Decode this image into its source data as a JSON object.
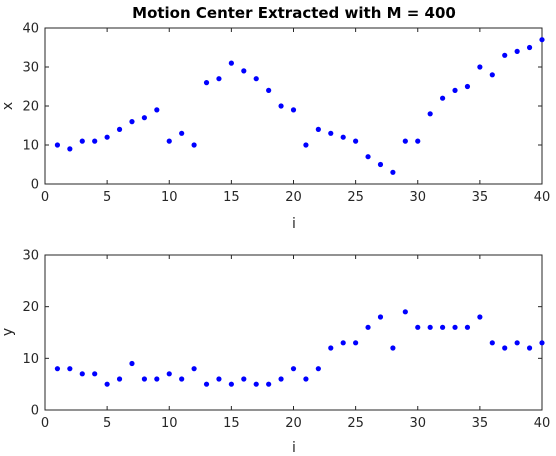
{
  "chart_data": [
    {
      "type": "scatter",
      "title": "Motion Center Extracted with M = 400",
      "xlabel": "i",
      "ylabel": "x",
      "xlim": [
        0,
        40
      ],
      "ylim": [
        0,
        40
      ],
      "xticks": [
        0,
        5,
        10,
        15,
        20,
        25,
        30,
        35,
        40
      ],
      "yticks": [
        0,
        10,
        20,
        30,
        40
      ],
      "grid": false,
      "color": "#0000ff",
      "x": [
        1,
        2,
        3,
        4,
        5,
        6,
        7,
        8,
        9,
        10,
        11,
        12,
        13,
        14,
        15,
        16,
        17,
        18,
        19,
        20,
        21,
        22,
        23,
        24,
        25,
        26,
        27,
        28,
        29,
        30,
        31,
        32,
        33,
        34,
        35,
        36,
        37,
        38,
        39,
        40
      ],
      "y": [
        10,
        9,
        11,
        11,
        12,
        14,
        16,
        17,
        19,
        11,
        13,
        10,
        26,
        27,
        31,
        29,
        27,
        24,
        20,
        19,
        10,
        14,
        13,
        12,
        11,
        7,
        5,
        3,
        11,
        11,
        18,
        22,
        24,
        25,
        30,
        28,
        33,
        34,
        35,
        37
      ]
    },
    {
      "type": "scatter",
      "title": "",
      "xlabel": "i",
      "ylabel": "y",
      "xlim": [
        0,
        40
      ],
      "ylim": [
        0,
        30
      ],
      "xticks": [
        0,
        5,
        10,
        15,
        20,
        25,
        30,
        35,
        40
      ],
      "yticks": [
        0,
        10,
        20,
        30
      ],
      "grid": false,
      "color": "#0000ff",
      "x": [
        1,
        2,
        3,
        4,
        5,
        6,
        7,
        8,
        9,
        10,
        11,
        12,
        13,
        14,
        15,
        16,
        17,
        18,
        19,
        20,
        21,
        22,
        23,
        24,
        25,
        26,
        27,
        28,
        29,
        30,
        31,
        32,
        33,
        34,
        35,
        36,
        37,
        38,
        39,
        40
      ],
      "y": [
        8,
        8,
        7,
        7,
        5,
        6,
        9,
        6,
        6,
        7,
        6,
        8,
        5,
        6,
        5,
        6,
        5,
        5,
        6,
        8,
        6,
        8,
        12,
        13,
        13,
        16,
        18,
        12,
        19,
        16,
        16,
        16,
        16,
        16,
        18,
        13,
        12,
        13,
        12,
        13
      ]
    }
  ]
}
